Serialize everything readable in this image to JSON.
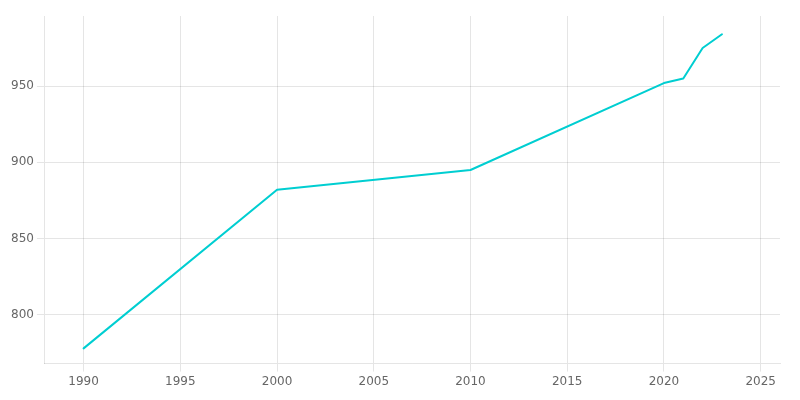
{
  "chart_data": {
    "type": "line",
    "x": [
      1990,
      2000,
      2010,
      2020,
      2021,
      2022,
      2023
    ],
    "values": [
      778,
      882,
      895,
      952,
      955,
      975,
      984
    ],
    "color": "#00CED1",
    "xlim": [
      1988,
      2026
    ],
    "xticks": [
      1990,
      1995,
      2000,
      2005,
      2010,
      2015,
      2020,
      2025
    ],
    "ylim": [
      768,
      996
    ],
    "yticks": [
      800,
      850,
      900,
      950
    ],
    "grid": true
  }
}
